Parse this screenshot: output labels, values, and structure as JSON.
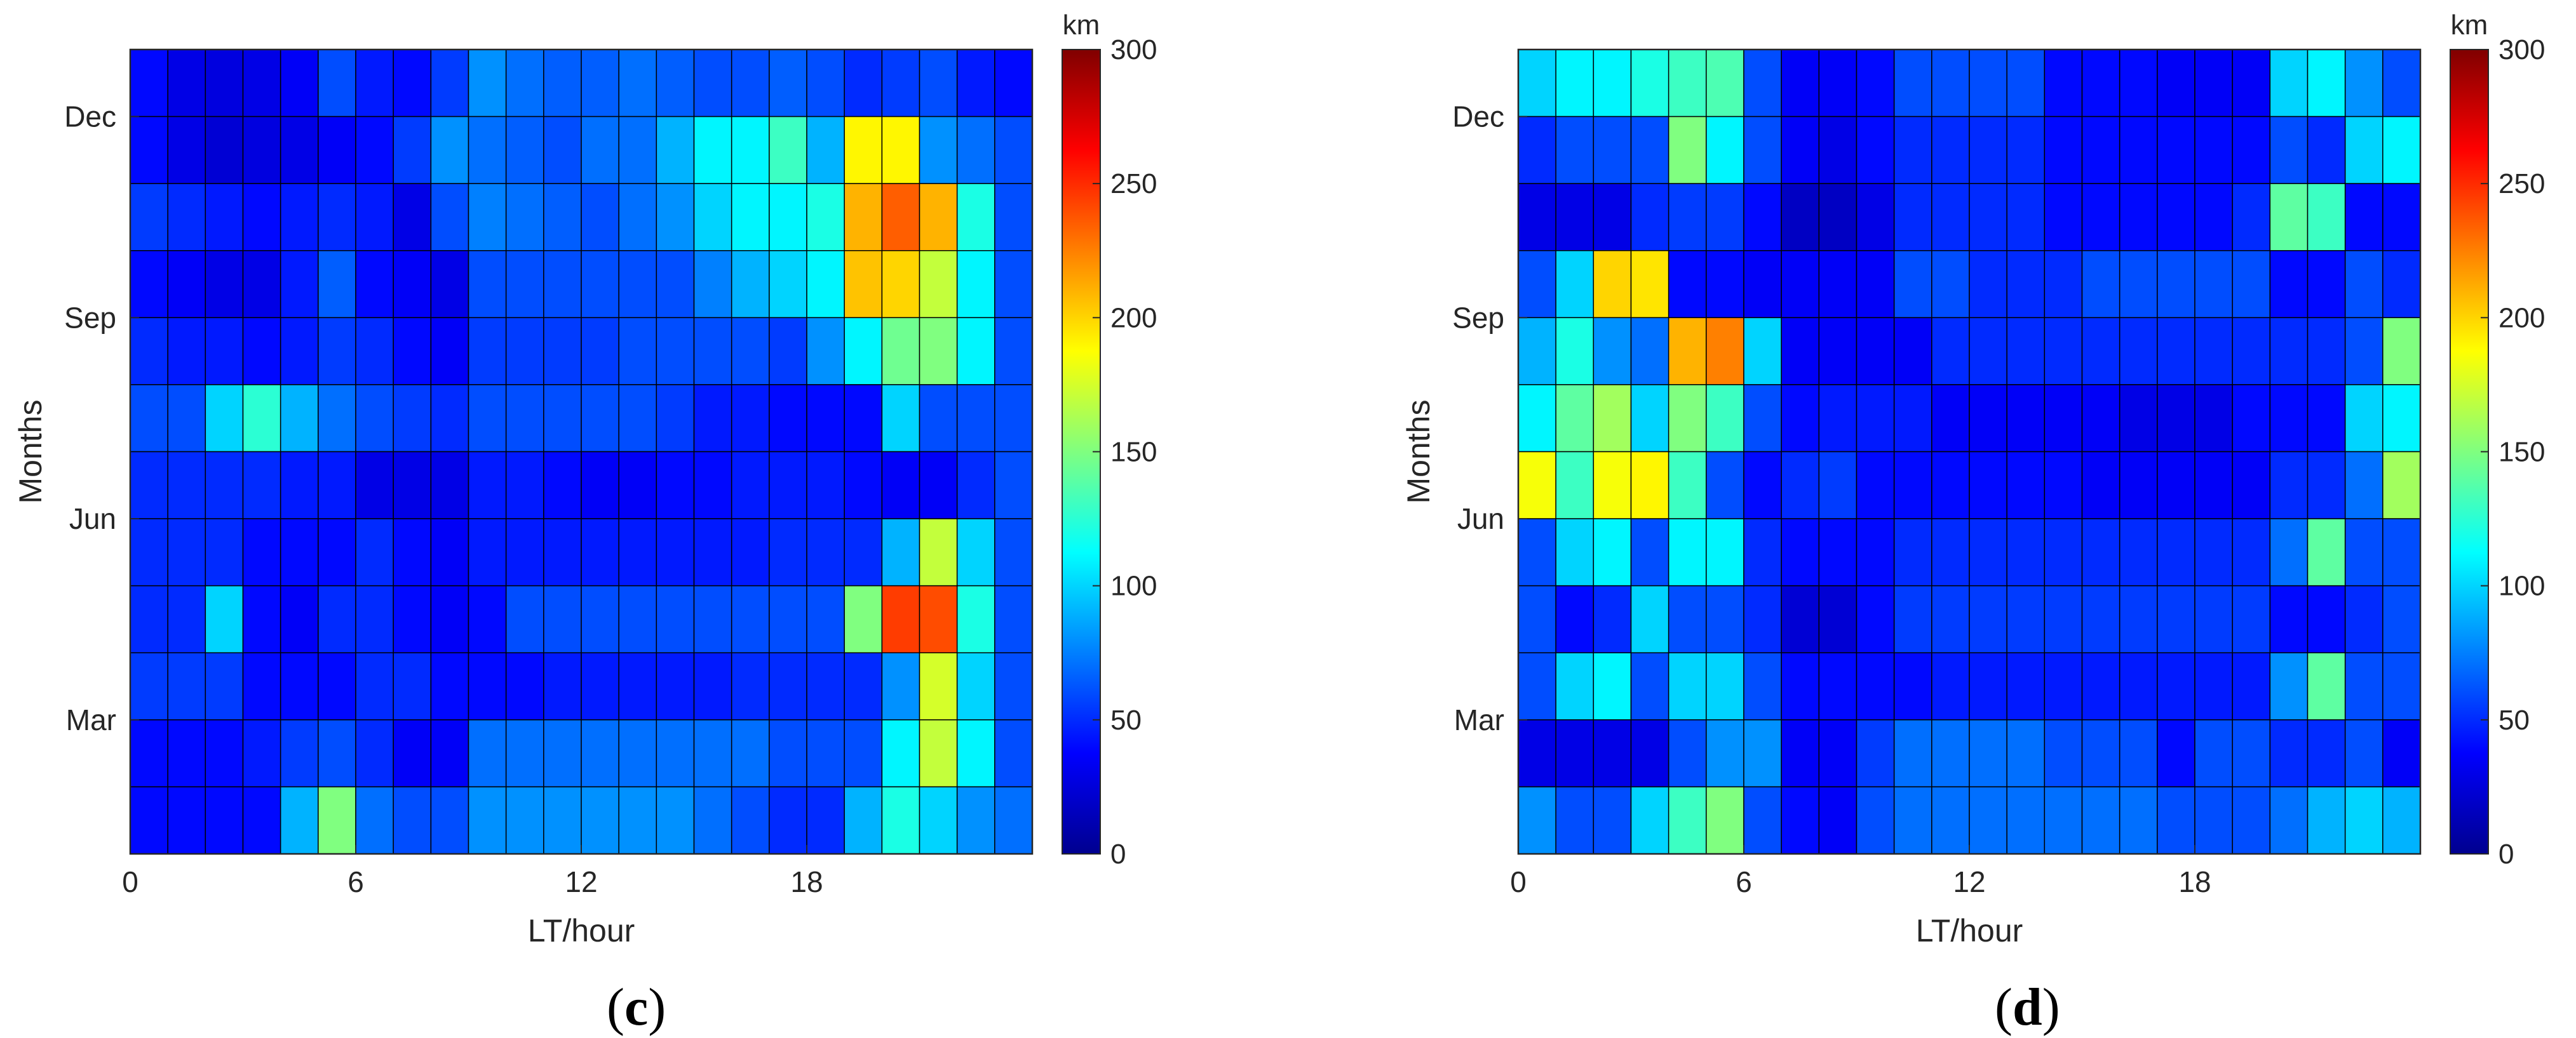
{
  "figure": {
    "caption_c": "c",
    "caption_d": "d"
  },
  "chart_data": [
    {
      "id": "c",
      "type": "heatmap",
      "xlabel": "LT/hour",
      "ylabel": "Months",
      "x_ticks": [
        "0",
        "6",
        "12",
        "18"
      ],
      "x_tick_values": [
        0,
        6,
        12,
        18
      ],
      "xlim": [
        0,
        24
      ],
      "y_ticks": [
        "Dec",
        "Sep",
        "Jun",
        "Mar"
      ],
      "y_tick_months": [
        12,
        9,
        6,
        3
      ],
      "colorbar": {
        "unit": "km",
        "ticks": [
          "0",
          "50",
          "100",
          "150",
          "200",
          "250",
          "300"
        ],
        "range": [
          0,
          300
        ],
        "colormap": "jet"
      },
      "rows_top_to_bottom": [
        "13",
        "12",
        "11",
        "10",
        "9",
        "8",
        "7",
        "6",
        "5",
        "4",
        "3",
        "2"
      ],
      "values": [
        [
          40,
          30,
          28,
          30,
          35,
          60,
          45,
          40,
          55,
          80,
          70,
          65,
          65,
          70,
          65,
          60,
          60,
          65,
          60,
          50,
          55,
          60,
          45,
          40
        ],
        [
          40,
          30,
          25,
          28,
          30,
          35,
          40,
          55,
          80,
          70,
          65,
          60,
          70,
          70,
          90,
          110,
          110,
          130,
          90,
          190,
          190,
          80,
          70,
          60
        ],
        [
          55,
          50,
          45,
          40,
          45,
          50,
          45,
          30,
          60,
          75,
          70,
          65,
          60,
          70,
          80,
          100,
          110,
          110,
          120,
          210,
          235,
          210,
          120,
          60
        ],
        [
          40,
          35,
          30,
          30,
          45,
          65,
          40,
          35,
          30,
          60,
          60,
          60,
          60,
          60,
          60,
          75,
          90,
          100,
          110,
          205,
          200,
          170,
          110,
          60
        ],
        [
          50,
          45,
          45,
          40,
          45,
          55,
          50,
          40,
          35,
          55,
          55,
          55,
          55,
          60,
          60,
          60,
          60,
          55,
          80,
          110,
          145,
          150,
          110,
          60
        ],
        [
          60,
          60,
          100,
          125,
          90,
          70,
          60,
          55,
          50,
          60,
          60,
          60,
          60,
          60,
          55,
          45,
          45,
          40,
          40,
          40,
          100,
          60,
          60,
          60
        ],
        [
          50,
          50,
          50,
          50,
          45,
          45,
          30,
          30,
          30,
          45,
          45,
          40,
          35,
          35,
          40,
          40,
          45,
          45,
          45,
          40,
          35,
          35,
          50,
          60
        ],
        [
          50,
          50,
          50,
          40,
          40,
          40,
          50,
          40,
          35,
          45,
          45,
          45,
          45,
          45,
          45,
          45,
          45,
          50,
          50,
          50,
          90,
          170,
          100,
          60
        ],
        [
          50,
          50,
          100,
          40,
          35,
          50,
          50,
          40,
          35,
          40,
          60,
          60,
          60,
          60,
          60,
          60,
          60,
          60,
          60,
          150,
          245,
          240,
          120,
          60
        ],
        [
          55,
          55,
          55,
          40,
          40,
          40,
          50,
          50,
          40,
          40,
          40,
          45,
          45,
          45,
          45,
          45,
          50,
          50,
          50,
          50,
          80,
          175,
          100,
          60
        ],
        [
          40,
          40,
          40,
          45,
          55,
          60,
          50,
          35,
          35,
          70,
          70,
          70,
          70,
          70,
          70,
          70,
          70,
          60,
          60,
          60,
          110,
          170,
          110,
          60
        ],
        [
          40,
          40,
          40,
          40,
          90,
          150,
          70,
          60,
          60,
          80,
          80,
          80,
          80,
          80,
          80,
          70,
          60,
          50,
          50,
          90,
          120,
          100,
          80,
          70
        ]
      ]
    },
    {
      "id": "d",
      "type": "heatmap",
      "xlabel": "LT/hour",
      "ylabel": "Months",
      "x_ticks": [
        "0",
        "6",
        "12",
        "18"
      ],
      "x_tick_values": [
        0,
        6,
        12,
        18
      ],
      "xlim": [
        0,
        24
      ],
      "y_ticks": [
        "Dec",
        "Sep",
        "Jun",
        "Mar"
      ],
      "y_tick_months": [
        12,
        9,
        6,
        3
      ],
      "colorbar": {
        "unit": "km",
        "ticks": [
          "0",
          "50",
          "100",
          "150",
          "200",
          "250",
          "300"
        ],
        "range": [
          0,
          300
        ],
        "colormap": "jet"
      },
      "rows_top_to_bottom": [
        "13",
        "12",
        "11",
        "10",
        "9",
        "8",
        "7",
        "6",
        "5",
        "4",
        "3",
        "2"
      ],
      "values": [
        [
          100,
          110,
          110,
          120,
          130,
          135,
          60,
          35,
          35,
          40,
          60,
          60,
          60,
          60,
          40,
          40,
          40,
          35,
          35,
          35,
          100,
          110,
          80,
          60
        ],
        [
          50,
          60,
          60,
          60,
          150,
          110,
          60,
          35,
          30,
          40,
          50,
          50,
          50,
          50,
          40,
          40,
          40,
          40,
          40,
          40,
          60,
          50,
          100,
          110
        ],
        [
          30,
          30,
          30,
          50,
          55,
          55,
          40,
          20,
          20,
          30,
          50,
          50,
          50,
          50,
          40,
          40,
          40,
          40,
          40,
          50,
          140,
          130,
          40,
          40
        ],
        [
          60,
          100,
          200,
          195,
          40,
          40,
          35,
          35,
          35,
          35,
          60,
          60,
          50,
          50,
          50,
          60,
          60,
          60,
          60,
          60,
          40,
          40,
          60,
          50
        ],
        [
          90,
          120,
          80,
          70,
          210,
          225,
          100,
          35,
          35,
          35,
          35,
          50,
          50,
          50,
          50,
          50,
          50,
          50,
          50,
          50,
          50,
          50,
          60,
          150
        ],
        [
          110,
          140,
          160,
          100,
          150,
          130,
          60,
          40,
          45,
          45,
          45,
          35,
          35,
          35,
          35,
          35,
          30,
          30,
          30,
          40,
          40,
          40,
          100,
          110
        ],
        [
          185,
          130,
          185,
          190,
          130,
          60,
          40,
          50,
          55,
          40,
          40,
          40,
          40,
          40,
          40,
          35,
          35,
          35,
          35,
          35,
          50,
          50,
          70,
          160
        ],
        [
          60,
          100,
          110,
          60,
          110,
          110,
          50,
          40,
          40,
          40,
          50,
          50,
          50,
          50,
          50,
          50,
          50,
          50,
          50,
          50,
          70,
          140,
          60,
          60
        ],
        [
          60,
          40,
          50,
          100,
          60,
          60,
          50,
          25,
          25,
          40,
          55,
          55,
          55,
          55,
          55,
          55,
          55,
          55,
          55,
          55,
          40,
          40,
          50,
          60
        ],
        [
          60,
          100,
          110,
          60,
          100,
          100,
          60,
          40,
          40,
          40,
          40,
          45,
          45,
          45,
          45,
          45,
          45,
          45,
          45,
          45,
          80,
          140,
          60,
          60
        ],
        [
          30,
          30,
          30,
          30,
          60,
          80,
          80,
          35,
          35,
          55,
          70,
          70,
          70,
          70,
          60,
          60,
          60,
          40,
          60,
          60,
          50,
          50,
          60,
          35
        ],
        [
          80,
          60,
          60,
          100,
          130,
          150,
          60,
          40,
          35,
          60,
          70,
          70,
          70,
          70,
          70,
          70,
          70,
          60,
          60,
          60,
          70,
          90,
          100,
          90
        ]
      ]
    }
  ]
}
